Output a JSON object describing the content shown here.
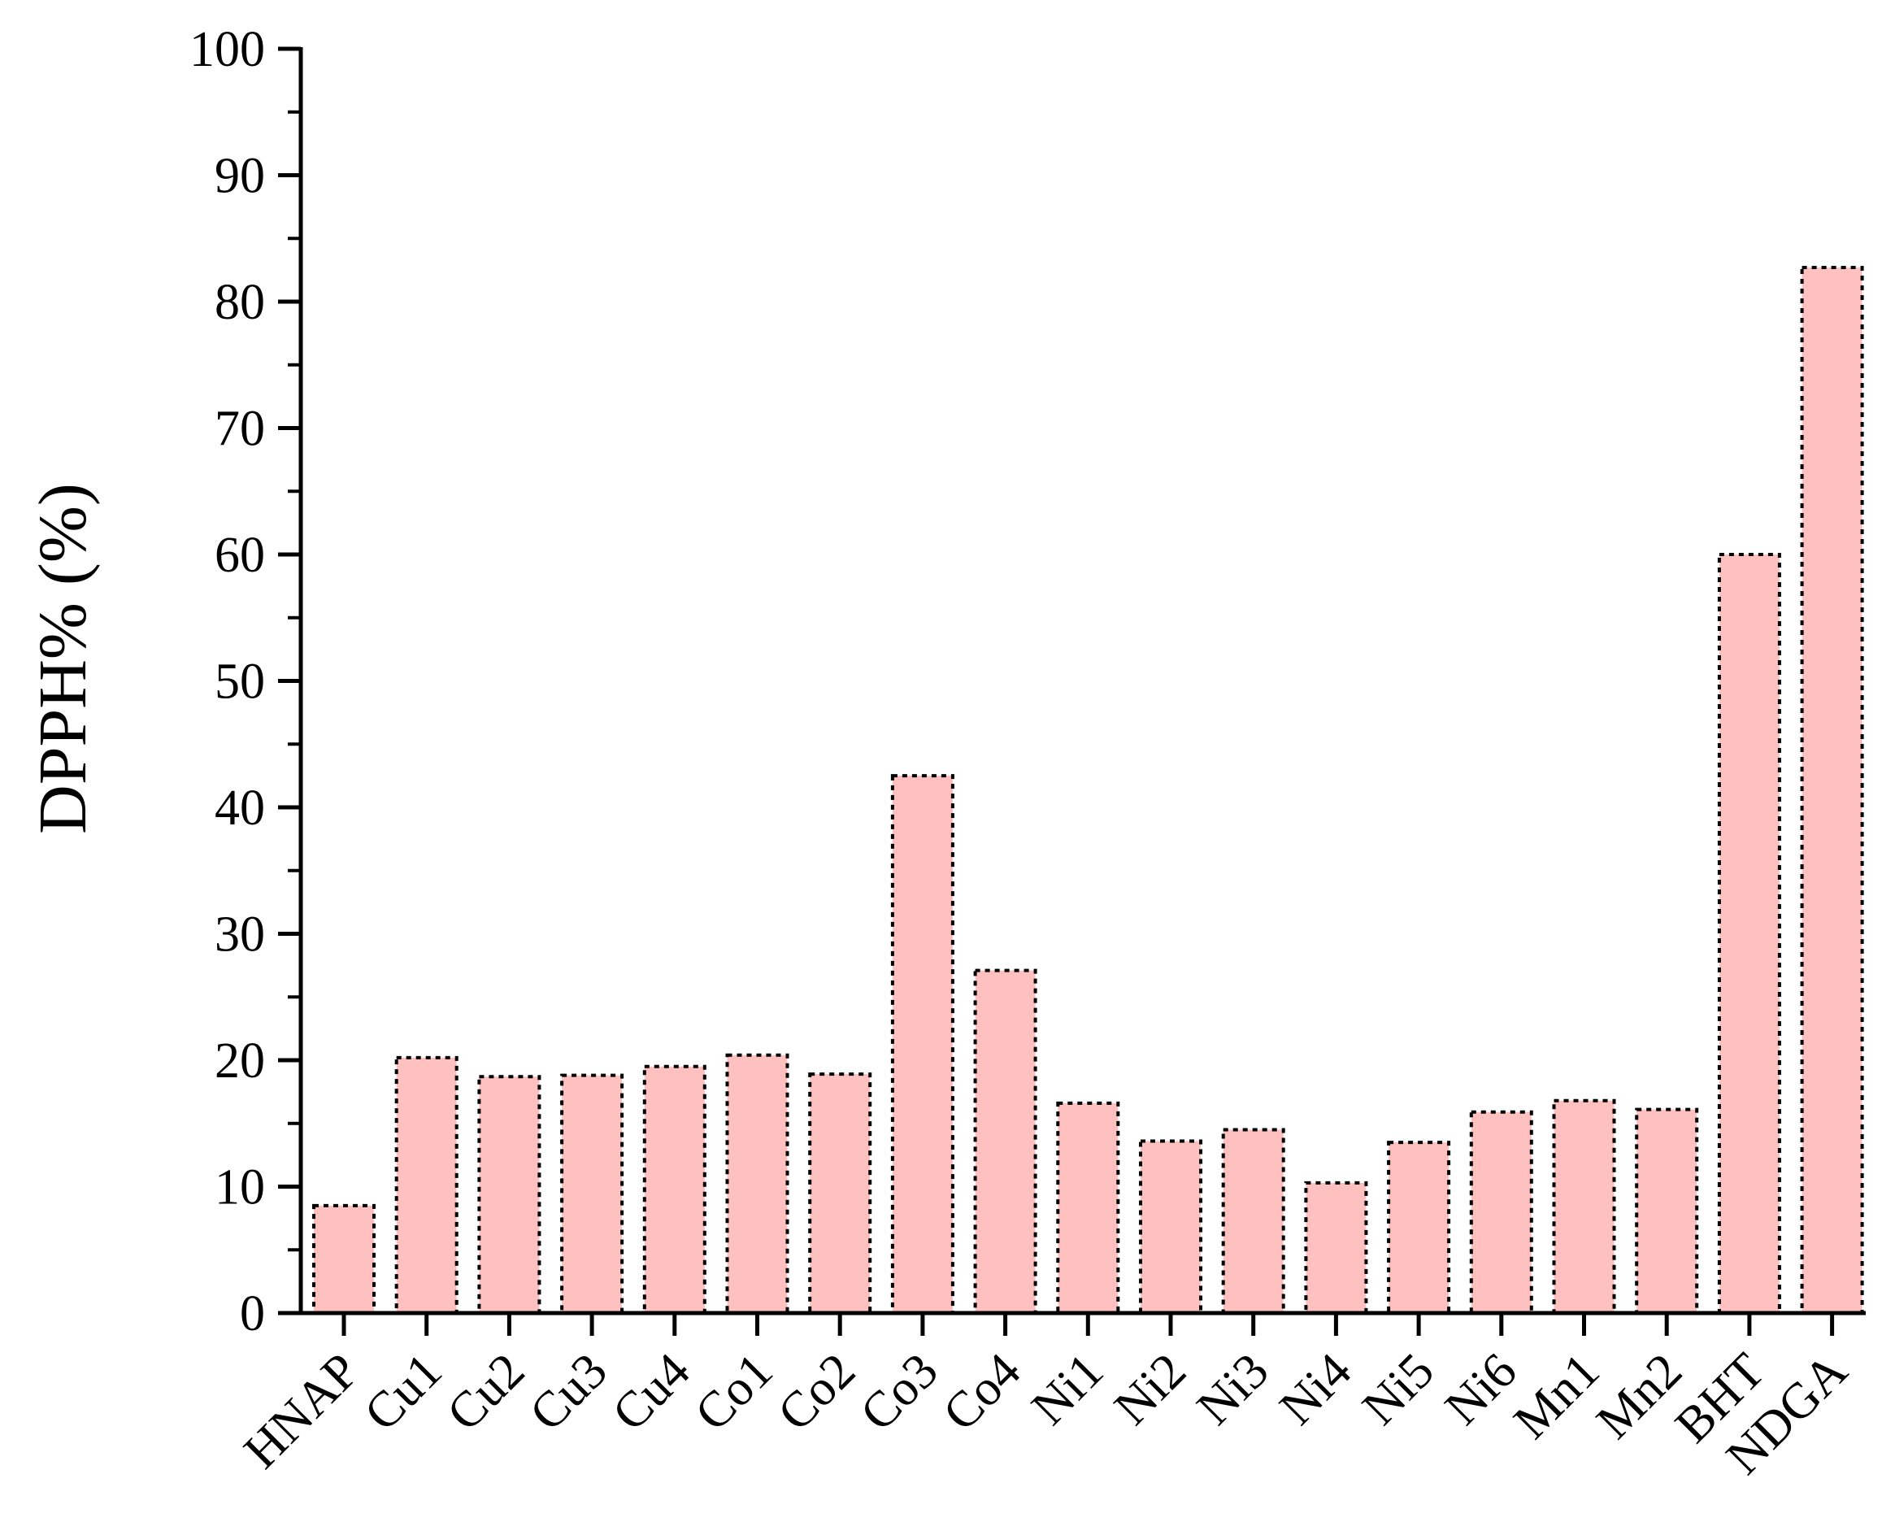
{
  "chart_data": {
    "type": "bar",
    "ylabel": "DPPH% (%)",
    "xlabel": "",
    "ylim": [
      0,
      100
    ],
    "yticks": [
      0,
      10,
      20,
      30,
      40,
      50,
      60,
      70,
      80,
      90,
      100
    ],
    "grid": false,
    "bar_color": "#ffc0c0",
    "categories": [
      "HNAP",
      "Cu1",
      "Cu2",
      "Cu3",
      "Cu4",
      "Co1",
      "Co2",
      "Co3",
      "Co4",
      "Ni1",
      "Ni2",
      "Ni3",
      "Ni4",
      "Ni5",
      "Ni6",
      "Mn1",
      "Mn2",
      "BHT",
      "NDGA"
    ],
    "values": [
      8.5,
      20.2,
      18.7,
      18.8,
      19.5,
      20.4,
      18.9,
      42.5,
      27.1,
      16.6,
      13.6,
      14.5,
      10.3,
      13.5,
      15.9,
      16.8,
      16.1,
      60.0,
      82.7
    ]
  }
}
